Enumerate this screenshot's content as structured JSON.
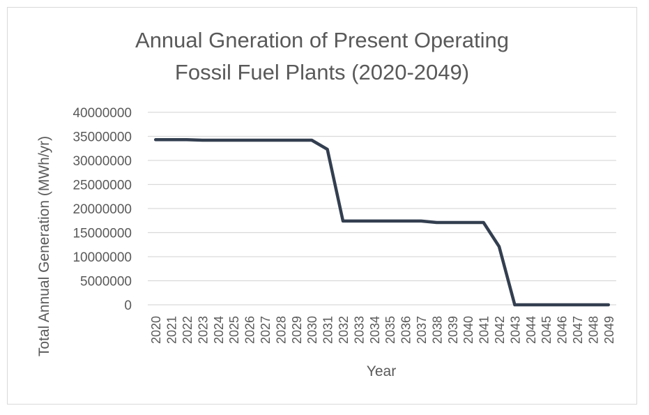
{
  "chart_data": {
    "type": "line",
    "title": [
      "Annual Gneration of Present Operating",
      "Fossil Fuel Plants (2020-2049)"
    ],
    "xlabel": "Year",
    "ylabel": "Total Annual Generation (MWh/yr)",
    "ylim": [
      0,
      40000000
    ],
    "y_ticks": [
      "0",
      "5000000",
      "10000000",
      "15000000",
      "20000000",
      "25000000",
      "30000000",
      "35000000",
      "40000000"
    ],
    "grid": true,
    "line_color": "#333f50",
    "categories": [
      "2020",
      "2021",
      "2022",
      "2023",
      "2024",
      "2025",
      "2026",
      "2027",
      "2028",
      "2029",
      "2030",
      "2031",
      "2032",
      "2033",
      "2034",
      "2035",
      "2036",
      "2037",
      "2038",
      "2039",
      "2040",
      "2041",
      "2042",
      "2043",
      "2044",
      "2045",
      "2046",
      "2047",
      "2048",
      "2049"
    ],
    "values": [
      34300000,
      34300000,
      34300000,
      34200000,
      34200000,
      34200000,
      34200000,
      34200000,
      34200000,
      34200000,
      34200000,
      32300000,
      17400000,
      17400000,
      17400000,
      17400000,
      17400000,
      17400000,
      17100000,
      17100000,
      17100000,
      17100000,
      12100000,
      0,
      0,
      0,
      0,
      0,
      0,
      0
    ]
  }
}
